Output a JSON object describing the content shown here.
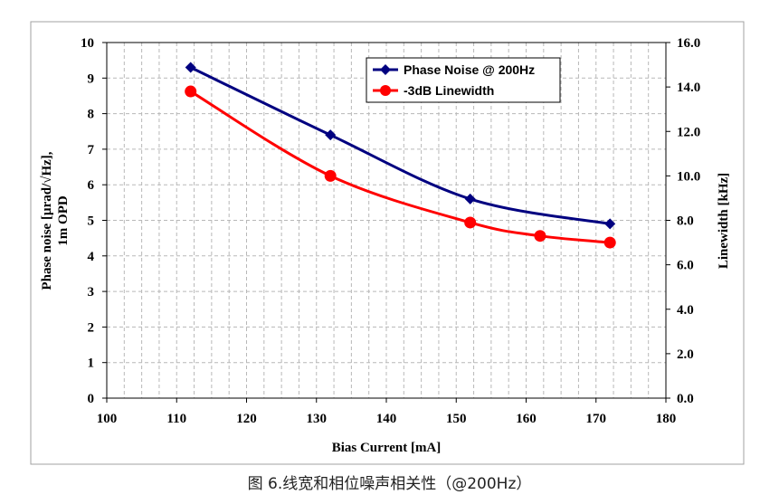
{
  "caption": "图 6.线宽和相位噪声相关性（@200Hz）",
  "chart_data": {
    "type": "line",
    "xlabel": "Bias Current [mA]",
    "ylabel_left_line1": "Phase noise [µrad/√Hz],",
    "ylabel_left_line2": "1m OPD",
    "ylabel_right": "Linewidth [kHz]",
    "xlim": [
      100,
      180
    ],
    "ylim_left": [
      0,
      10
    ],
    "ylim_right": [
      0,
      16
    ],
    "x_ticks": [
      "100",
      "110",
      "120",
      "130",
      "140",
      "150",
      "160",
      "170",
      "180"
    ],
    "y_left_ticks": [
      "0",
      "1",
      "2",
      "3",
      "4",
      "5",
      "6",
      "7",
      "8",
      "9",
      "10"
    ],
    "y_right_ticks": [
      "0.0",
      "2.0",
      "4.0",
      "6.0",
      "8.0",
      "10.0",
      "12.0",
      "14.0",
      "16.0"
    ],
    "grid": true,
    "legend_position": "top-right",
    "series": [
      {
        "name": "Phase Noise @ 200Hz",
        "axis": "left",
        "color": "#000080",
        "marker": "diamond",
        "x": [
          112,
          132,
          152,
          172
        ],
        "y": [
          9.3,
          7.4,
          5.6,
          4.9
        ]
      },
      {
        "name": "-3dB Linewidth",
        "axis": "right",
        "color": "#ff0000",
        "marker": "circle",
        "x": [
          112,
          132,
          152,
          162,
          172
        ],
        "y": [
          13.8,
          10.0,
          7.9,
          7.3,
          7.0
        ]
      }
    ]
  }
}
